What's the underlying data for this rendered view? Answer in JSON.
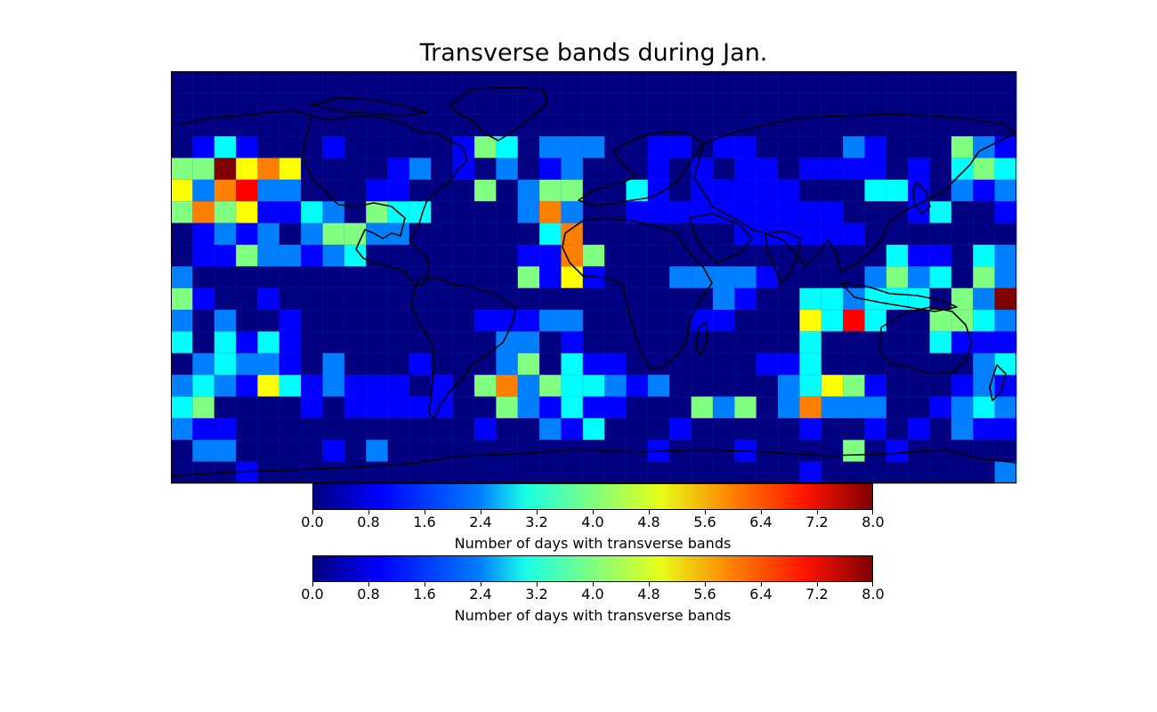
{
  "chart_data": {
    "type": "heatmap",
    "title": "Transverse bands during Jan.",
    "grid": "coarse lat/lon cells over a world map (equidistant cylindrical)",
    "colormap": "jet",
    "vmin": 0,
    "vmax": 8,
    "lon_range": [
      -180,
      180
    ],
    "lat_range": [
      -90,
      90
    ],
    "values": [
      [
        0,
        0,
        0,
        0,
        0,
        0,
        0,
        0,
        0,
        0,
        0,
        0,
        0,
        0,
        0,
        0,
        0,
        0,
        0,
        0,
        0,
        0,
        0,
        0,
        0,
        0,
        0,
        0,
        0,
        0,
        0,
        0,
        0,
        0,
        0,
        0,
        0,
        0,
        0
      ],
      [
        0,
        0,
        0,
        0,
        0,
        0,
        0,
        0,
        0,
        0,
        0,
        0,
        0,
        0,
        0,
        0,
        0,
        0,
        0,
        0,
        0,
        0,
        0,
        0,
        0,
        0,
        0,
        0,
        0,
        0,
        0,
        0,
        0,
        0,
        0,
        0,
        0,
        0,
        0
      ],
      [
        0,
        0,
        0,
        0,
        0,
        0,
        0,
        0,
        0,
        0,
        0,
        0,
        0,
        0,
        0,
        0,
        0,
        0,
        0,
        0,
        0,
        0,
        0,
        0,
        0,
        0,
        0,
        0,
        0,
        0,
        0,
        0,
        0,
        0,
        0,
        0,
        0,
        0,
        0
      ],
      [
        0,
        1,
        3,
        1,
        0,
        0,
        0,
        1,
        0,
        0,
        0,
        0,
        0,
        1,
        4,
        3,
        0,
        2,
        2,
        2,
        0,
        0,
        1,
        1,
        0,
        1,
        1,
        0,
        0,
        0,
        0,
        2,
        1,
        0,
        0,
        0,
        4,
        2,
        1
      ],
      [
        4,
        4,
        8,
        5,
        6,
        5,
        0,
        0,
        0,
        0,
        1,
        2,
        0,
        1,
        0,
        2,
        0,
        1,
        2,
        0,
        0,
        0,
        1,
        0,
        1,
        0,
        1,
        1,
        0,
        1,
        1,
        1,
        1,
        0,
        1,
        0,
        3,
        4,
        3
      ],
      [
        5,
        2,
        6,
        7,
        2,
        2,
        0,
        0,
        0,
        1,
        1,
        0,
        0,
        0,
        4,
        0,
        2,
        4,
        4,
        0,
        0,
        3,
        1,
        0,
        1,
        1,
        1,
        1,
        1,
        0,
        0,
        0,
        3,
        3,
        1,
        0,
        2,
        1,
        2
      ],
      [
        4,
        6,
        4,
        5,
        1,
        1,
        3,
        2,
        0,
        4,
        3,
        3,
        0,
        0,
        0,
        0,
        2,
        6,
        2,
        0,
        0,
        1,
        1,
        1,
        1,
        1,
        1,
        1,
        1,
        1,
        1,
        0,
        0,
        0,
        1,
        3,
        0,
        0,
        1
      ],
      [
        0,
        1,
        2,
        1,
        2,
        0,
        2,
        4,
        4,
        2,
        2,
        0,
        0,
        0,
        0,
        0,
        0,
        3,
        6,
        0,
        0,
        0,
        0,
        0,
        0,
        0,
        1,
        1,
        1,
        1,
        1,
        1,
        0,
        0,
        0,
        0,
        0,
        0,
        0
      ],
      [
        0,
        1,
        1,
        4,
        2,
        2,
        1,
        2,
        3,
        0,
        0,
        0,
        0,
        0,
        0,
        0,
        1,
        1,
        6,
        4,
        0,
        0,
        0,
        0,
        0,
        0,
        0,
        0,
        0,
        0,
        0,
        0,
        0,
        3,
        1,
        1,
        0,
        3,
        2
      ],
      [
        2,
        0,
        0,
        0,
        0,
        0,
        0,
        0,
        0,
        0,
        0,
        0,
        0,
        0,
        0,
        0,
        4,
        1,
        5,
        1,
        0,
        0,
        0,
        2,
        2,
        2,
        2,
        1,
        0,
        0,
        0,
        0,
        2,
        4,
        2,
        3,
        0,
        4,
        2
      ],
      [
        4,
        1,
        0,
        0,
        1,
        0,
        0,
        0,
        0,
        0,
        0,
        0,
        0,
        0,
        0,
        0,
        0,
        0,
        0,
        0,
        0,
        0,
        0,
        0,
        0,
        2,
        1,
        0,
        0,
        3,
        3,
        2,
        3,
        3,
        3,
        0,
        4,
        2,
        8
      ],
      [
        2,
        0,
        2,
        0,
        0,
        1,
        0,
        0,
        0,
        0,
        0,
        0,
        0,
        0,
        1,
        1,
        1,
        2,
        2,
        0,
        0,
        0,
        0,
        0,
        1,
        1,
        0,
        0,
        0,
        5,
        3,
        7,
        3,
        0,
        0,
        4,
        4,
        3,
        2
      ],
      [
        3,
        0,
        3,
        1,
        3,
        1,
        0,
        0,
        0,
        0,
        0,
        0,
        0,
        0,
        0,
        2,
        2,
        0,
        1,
        0,
        0,
        0,
        0,
        0,
        0,
        0,
        0,
        0,
        0,
        3,
        0,
        0,
        0,
        0,
        0,
        3,
        1,
        1,
        1
      ],
      [
        0,
        2,
        3,
        2,
        2,
        1,
        0,
        2,
        0,
        0,
        0,
        1,
        0,
        0,
        0,
        2,
        4,
        0,
        3,
        1,
        1,
        0,
        0,
        0,
        0,
        0,
        0,
        1,
        1,
        3,
        0,
        0,
        0,
        0,
        0,
        0,
        0,
        2,
        3
      ],
      [
        2,
        3,
        2,
        1,
        5,
        3,
        1,
        2,
        1,
        1,
        1,
        0,
        1,
        0,
        4,
        6,
        2,
        4,
        3,
        3,
        2,
        1,
        2,
        0,
        0,
        0,
        0,
        0,
        2,
        3,
        5,
        4,
        1,
        0,
        0,
        0,
        1,
        2,
        1
      ],
      [
        3,
        4,
        0,
        0,
        0,
        0,
        1,
        0,
        1,
        1,
        1,
        1,
        1,
        0,
        0,
        4,
        2,
        1,
        3,
        1,
        1,
        0,
        0,
        0,
        4,
        2,
        4,
        0,
        2,
        6,
        2,
        2,
        2,
        0,
        0,
        1,
        2,
        3,
        2
      ],
      [
        2,
        1,
        1,
        0,
        0,
        0,
        0,
        0,
        0,
        0,
        0,
        0,
        0,
        0,
        1,
        0,
        0,
        2,
        1,
        3,
        0,
        0,
        0,
        1,
        0,
        0,
        0,
        0,
        0,
        1,
        0,
        0,
        1,
        0,
        1,
        0,
        2,
        1,
        1
      ],
      [
        0,
        2,
        2,
        0,
        0,
        0,
        0,
        1,
        0,
        2,
        0,
        0,
        0,
        0,
        0,
        0,
        0,
        0,
        0,
        0,
        0,
        0,
        1,
        0,
        0,
        0,
        1,
        0,
        0,
        0,
        0,
        4,
        0,
        1,
        0,
        0,
        0,
        0,
        0
      ],
      [
        0,
        0,
        0,
        1,
        0,
        0,
        0,
        0,
        0,
        0,
        0,
        0,
        0,
        0,
        0,
        0,
        0,
        0,
        0,
        0,
        0,
        0,
        0,
        0,
        0,
        0,
        0,
        0,
        0,
        1,
        0,
        0,
        0,
        0,
        0,
        0,
        0,
        0,
        2
      ]
    ],
    "colorbars": [
      {
        "ticks": [
          "0.0",
          "0.8",
          "1.6",
          "2.4",
          "3.2",
          "4.0",
          "4.8",
          "5.6",
          "6.4",
          "7.2",
          "8.0"
        ],
        "label": "Number of days with transverse bands"
      },
      {
        "ticks": [
          "0.0",
          "0.8",
          "1.6",
          "2.4",
          "3.2",
          "4.0",
          "4.8",
          "5.6",
          "6.4",
          "7.2",
          "8.0"
        ],
        "label": "Number of days with transverse bands"
      }
    ]
  }
}
